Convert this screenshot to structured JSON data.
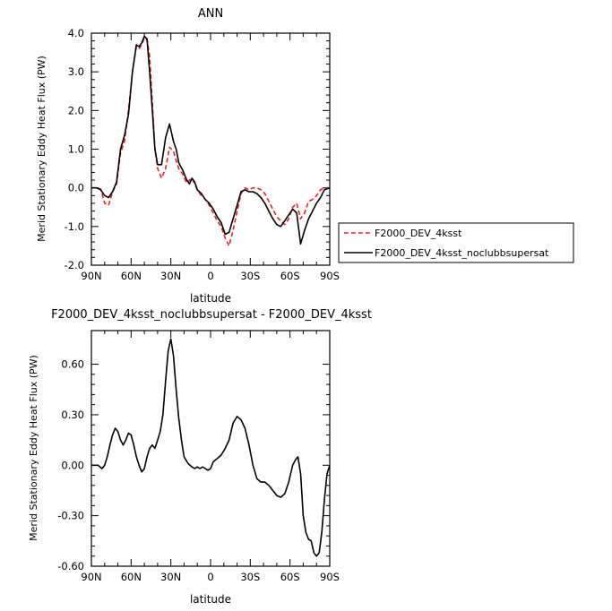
{
  "chart_data": [
    {
      "type": "line",
      "title": "ANN",
      "xlabel": "latitude",
      "ylabel": "Merid Stationary Eddy Heat Flux (PW)",
      "xlim": [
        -90,
        90
      ],
      "ylim": [
        -2.0,
        4.0
      ],
      "x_ticks": [
        -90,
        -60,
        -30,
        0,
        30,
        60,
        90
      ],
      "x_tick_labels": [
        "90N",
        "60N",
        "30N",
        "0",
        "30S",
        "60S",
        "90S"
      ],
      "y_ticks": [
        -2.0,
        -1.0,
        0.0,
        1.0,
        2.0,
        3.0,
        4.0
      ],
      "y_tick_labels": [
        "-2.0",
        "-1.0",
        "0.0",
        "1.0",
        "2.0",
        "3.0",
        "4.0"
      ],
      "legend_position": "right",
      "series": [
        {
          "name": "F2000_DEV_4ksst",
          "color": "#e8231f",
          "dash": "dashed",
          "x": [
            -90,
            -86,
            -83,
            -80,
            -77,
            -74,
            -71,
            -68,
            -65,
            -62,
            -59,
            -56,
            -54,
            -52,
            -50,
            -48,
            -46,
            -44,
            -42,
            -40,
            -37,
            -34,
            -31,
            -28,
            -26,
            -24,
            -21,
            -18,
            -16,
            -14,
            -12,
            -10,
            -7,
            -4,
            -1,
            2,
            5,
            8,
            11,
            14,
            17,
            20,
            23,
            26,
            29,
            32,
            35,
            38,
            41,
            44,
            47,
            50,
            53,
            56,
            59,
            62,
            65,
            68,
            71,
            74,
            77,
            80,
            83,
            86,
            90
          ],
          "values": [
            0.0,
            0.0,
            -0.03,
            -0.4,
            -0.45,
            -0.1,
            0.1,
            0.9,
            1.2,
            2.0,
            3.0,
            3.65,
            3.6,
            3.7,
            3.88,
            3.82,
            3.4,
            2.2,
            1.0,
            0.5,
            0.25,
            0.5,
            1.05,
            0.95,
            0.7,
            0.5,
            0.35,
            0.12,
            0.2,
            0.25,
            0.1,
            -0.05,
            -0.2,
            -0.3,
            -0.45,
            -0.65,
            -0.85,
            -1.0,
            -1.3,
            -1.5,
            -1.1,
            -0.6,
            -0.15,
            0.0,
            -0.05,
            0.0,
            0.0,
            -0.05,
            -0.15,
            -0.35,
            -0.55,
            -0.75,
            -0.85,
            -0.95,
            -0.8,
            -0.5,
            -0.4,
            -0.8,
            -0.65,
            -0.35,
            -0.3,
            -0.2,
            -0.05,
            0.0,
            0.0
          ]
        },
        {
          "name": "F2000_DEV_4ksst_noclubbsupersat",
          "color": "#000000",
          "dash": "solid",
          "x": [
            -90,
            -86,
            -83,
            -80,
            -77,
            -74,
            -71,
            -68,
            -65,
            -62,
            -59,
            -56,
            -54,
            -52,
            -50,
            -48,
            -46,
            -44,
            -42,
            -40,
            -37,
            -34,
            -31,
            -28,
            -26,
            -24,
            -21,
            -18,
            -16,
            -14,
            -12,
            -10,
            -7,
            -4,
            -1,
            2,
            5,
            8,
            11,
            14,
            17,
            20,
            23,
            26,
            29,
            32,
            35,
            38,
            41,
            44,
            47,
            50,
            53,
            56,
            59,
            62,
            65,
            68,
            71,
            74,
            77,
            80,
            83,
            86,
            90
          ],
          "values": [
            0.0,
            0.0,
            -0.05,
            -0.2,
            -0.25,
            -0.1,
            0.15,
            1.0,
            1.35,
            1.9,
            3.0,
            3.7,
            3.65,
            3.75,
            3.92,
            3.85,
            3.0,
            2.0,
            1.0,
            0.6,
            0.6,
            1.3,
            1.65,
            1.2,
            1.0,
            0.65,
            0.45,
            0.2,
            0.1,
            0.25,
            0.15,
            -0.05,
            -0.15,
            -0.3,
            -0.4,
            -0.55,
            -0.75,
            -0.9,
            -1.2,
            -1.15,
            -0.8,
            -0.45,
            -0.1,
            -0.05,
            -0.1,
            -0.1,
            -0.15,
            -0.25,
            -0.4,
            -0.6,
            -0.8,
            -0.95,
            -1.0,
            -0.85,
            -0.7,
            -0.55,
            -0.65,
            -1.45,
            -1.1,
            -0.8,
            -0.6,
            -0.4,
            -0.25,
            -0.05,
            0.0
          ]
        }
      ]
    },
    {
      "type": "line",
      "title": "F2000_DEV_4ksst_noclubbsupersat - F2000_DEV_4ksst",
      "xlabel": "latitude",
      "ylabel": "Merid Stationary Eddy Heat Flux (PW)",
      "xlim": [
        -90,
        90
      ],
      "ylim": [
        -0.6,
        0.8
      ],
      "x_ticks": [
        -90,
        -60,
        -30,
        0,
        30,
        60,
        90
      ],
      "x_tick_labels": [
        "90N",
        "60N",
        "30N",
        "0",
        "30S",
        "60S",
        "90S"
      ],
      "y_ticks": [
        -0.6,
        -0.3,
        0.0,
        0.3,
        0.6
      ],
      "y_tick_labels": [
        "-0.60",
        "-0.30",
        "0.00",
        "0.30",
        "0.60"
      ],
      "series": [
        {
          "color": "#000000",
          "dash": "solid",
          "x": [
            -90,
            -85,
            -82,
            -80,
            -78,
            -76,
            -74,
            -72,
            -70,
            -68,
            -66,
            -64,
            -62,
            -60,
            -58,
            -56,
            -54,
            -52,
            -50,
            -48,
            -46,
            -44,
            -42,
            -40,
            -38,
            -36,
            -34,
            -32,
            -30,
            -28,
            -26,
            -24,
            -22,
            -20,
            -17,
            -14,
            -12,
            -10,
            -8,
            -6,
            -4,
            -2,
            0,
            2,
            5,
            8,
            11,
            14,
            17,
            20,
            23,
            26,
            29,
            32,
            35,
            38,
            41,
            44,
            47,
            50,
            53,
            56,
            59,
            62,
            64,
            66,
            68,
            70,
            72,
            74,
            76,
            78,
            80,
            82,
            84,
            86,
            88,
            90
          ],
          "values": [
            0.0,
            0.0,
            -0.02,
            0.0,
            0.05,
            0.12,
            0.18,
            0.22,
            0.2,
            0.15,
            0.12,
            0.15,
            0.19,
            0.18,
            0.12,
            0.05,
            0.0,
            -0.04,
            -0.02,
            0.05,
            0.1,
            0.12,
            0.1,
            0.15,
            0.2,
            0.3,
            0.5,
            0.68,
            0.75,
            0.65,
            0.45,
            0.28,
            0.15,
            0.05,
            0.01,
            -0.01,
            -0.02,
            -0.01,
            -0.02,
            -0.01,
            -0.02,
            -0.03,
            -0.02,
            0.02,
            0.04,
            0.06,
            0.1,
            0.15,
            0.25,
            0.29,
            0.27,
            0.22,
            0.12,
            0.0,
            -0.08,
            -0.1,
            -0.1,
            -0.12,
            -0.15,
            -0.18,
            -0.19,
            -0.17,
            -0.1,
            0.0,
            0.03,
            0.05,
            -0.05,
            -0.3,
            -0.4,
            -0.44,
            -0.45,
            -0.52,
            -0.54,
            -0.52,
            -0.4,
            -0.2,
            -0.05,
            0.0
          ]
        }
      ]
    }
  ]
}
